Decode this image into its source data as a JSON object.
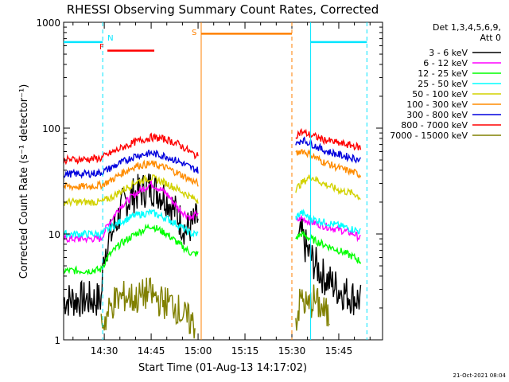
{
  "chart_data": {
    "type": "line",
    "title": "RHESSI Observing Summary Count Rates, Corrected",
    "xlabel": "Start Time (01-Aug-13 14:17:02)",
    "ylabel": "Corrected Count Rate (s⁻¹ detector⁻¹)",
    "x_ticks": [
      "14:30",
      "14:45",
      "15:00",
      "15:15",
      "15:30",
      "15:45"
    ],
    "x_tick_minutes": [
      30,
      45,
      60,
      75,
      90,
      105
    ],
    "xlim_minutes": [
      17.0,
      119.0
    ],
    "y_scale": "log",
    "ylim": [
      1,
      1000
    ],
    "y_ticks": [
      1,
      10,
      100,
      1000
    ],
    "y_tick_labels": [
      "1",
      "10",
      "100",
      "1000"
    ],
    "legend_header": [
      "Det 1,3,4,5,6,9,",
      "Att 0"
    ],
    "legend_position": "right",
    "timestamp": "21-Oct-2021 08:04",
    "series": [
      {
        "name": "3 - 6 keV",
        "color": "#000000",
        "x": [
          17,
          25,
          29,
          30,
          33,
          36,
          40,
          45,
          50,
          54,
          56,
          58,
          60,
          88,
          92,
          93,
          94,
          96,
          100,
          105,
          110,
          112
        ],
        "values": [
          2.4,
          2.4,
          2.4,
          7,
          11,
          19,
          24,
          28,
          22,
          14,
          11,
          12,
          14,
          null,
          8,
          10,
          8,
          6,
          4,
          3,
          2.5,
          2.4
        ]
      },
      {
        "name": "6 - 12 keV",
        "color": "#ff00ff",
        "x": [
          17,
          25,
          29,
          31,
          35,
          40,
          45,
          50,
          54,
          58,
          60,
          88,
          91,
          93,
          96,
          100,
          105,
          110,
          112
        ],
        "values": [
          9,
          9,
          9,
          12,
          18,
          24,
          30,
          24,
          17,
          14,
          16,
          null,
          13,
          14,
          13,
          12,
          11,
          10,
          9
        ]
      },
      {
        "name": "12 - 25 keV",
        "color": "#00ff00",
        "x": [
          17,
          25,
          29,
          31,
          35,
          40,
          45,
          50,
          54,
          58,
          60,
          88,
          91,
          93,
          96,
          100,
          105,
          110,
          112
        ],
        "values": [
          4.5,
          4.5,
          4.6,
          6,
          8,
          10,
          12,
          10,
          8,
          6.5,
          6.5,
          null,
          9,
          10,
          9,
          8,
          7,
          6,
          5.5
        ]
      },
      {
        "name": "25 - 50 keV",
        "color": "#00ffff",
        "x": [
          17,
          25,
          29,
          31,
          35,
          40,
          45,
          50,
          54,
          58,
          60,
          88,
          91,
          93,
          96,
          100,
          105,
          110,
          112
        ],
        "values": [
          10,
          10,
          10,
          11,
          13,
          15,
          16,
          14,
          12,
          10,
          10,
          null,
          14,
          16,
          14,
          13,
          12,
          11,
          10.5
        ]
      },
      {
        "name": "50 - 100 keV",
        "color": "#d2d200",
        "x": [
          17,
          25,
          29,
          32,
          36,
          40,
          45,
          50,
          54,
          58,
          60,
          88,
          91,
          93,
          96,
          100,
          105,
          110,
          112
        ],
        "values": [
          20,
          20,
          20,
          22,
          26,
          31,
          34,
          30,
          26,
          22,
          21,
          null,
          26,
          30,
          35,
          30,
          26,
          24,
          22
        ]
      },
      {
        "name": "100 - 300 keV",
        "color": "#ff8c00",
        "x": [
          17,
          25,
          29,
          32,
          36,
          40,
          45,
          50,
          54,
          58,
          60,
          88,
          91,
          93,
          96,
          100,
          105,
          110,
          112
        ],
        "values": [
          28,
          28,
          29,
          32,
          38,
          44,
          46,
          42,
          37,
          32,
          30,
          null,
          55,
          62,
          56,
          48,
          42,
          38,
          36
        ]
      },
      {
        "name": "300 - 800 keV",
        "color": "#0000dd",
        "x": [
          17,
          25,
          29,
          32,
          36,
          40,
          45,
          50,
          54,
          58,
          60,
          88,
          91,
          93,
          96,
          100,
          105,
          110,
          112
        ],
        "values": [
          37,
          37,
          38,
          42,
          48,
          55,
          58,
          54,
          48,
          42,
          40,
          null,
          68,
          78,
          72,
          62,
          56,
          52,
          50
        ]
      },
      {
        "name": "800 - 7000 keV",
        "color": "#ff0000",
        "x": [
          17,
          25,
          29,
          32,
          36,
          40,
          45,
          50,
          54,
          58,
          60,
          88,
          91,
          93,
          96,
          100,
          105,
          110,
          112
        ],
        "values": [
          50,
          51,
          52,
          58,
          66,
          74,
          82,
          78,
          70,
          58,
          54,
          null,
          85,
          92,
          86,
          78,
          72,
          68,
          65
        ]
      },
      {
        "name": "7000 - 15000 keV",
        "color": "#808000",
        "x": [
          29,
          30,
          33,
          37,
          40,
          44,
          48,
          52,
          56,
          59,
          88,
          91,
          93,
          95,
          97,
          100,
          102
        ],
        "values": [
          1.5,
          1.5,
          2.3,
          2.6,
          2.4,
          2.8,
          2.3,
          2.2,
          1.6,
          1.4,
          null,
          1.4,
          2.5,
          2.0,
          2.4,
          1.9,
          1.6
        ]
      }
    ],
    "annotations": {
      "flag_labels": [
        "N",
        "F",
        "S"
      ],
      "night_segments": [
        [
          17,
          29.5
        ],
        [
          96,
          114
        ]
      ],
      "saa_segment": [
        61,
        90
      ],
      "flare_segment": [
        31,
        46
      ]
    }
  }
}
